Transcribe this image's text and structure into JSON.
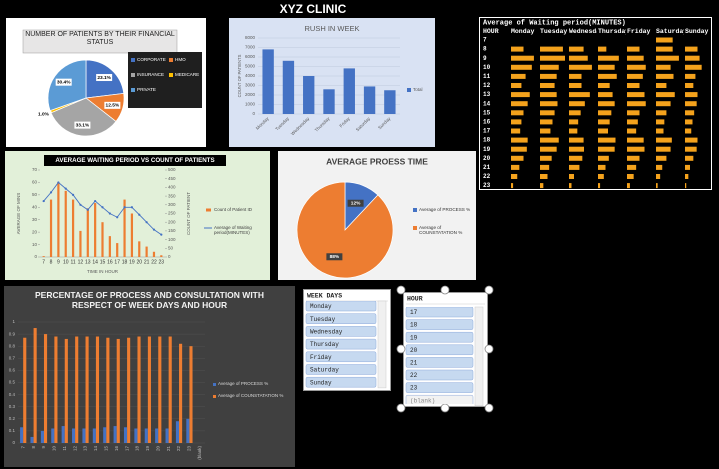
{
  "title": "XYZ CLINIC",
  "chart_data": [
    {
      "type": "pie",
      "title": "NUMBER OF PATIENTS BY THEIR FINANCIAL STATUS",
      "categories": [
        "CORPORATE",
        "HMO",
        "INSURANCE",
        "MEDICARE",
        "PRIVATE"
      ],
      "values": [
        23.1,
        12.5,
        33.1,
        1.0,
        30.4
      ],
      "value_labels": [
        "23.1%",
        "12.5%",
        "33.1%",
        "1.0%",
        "30.4%"
      ],
      "colors": [
        "#4472c4",
        "#ed7d31",
        "#a5a5a5",
        "#ffc000",
        "#5b9bd5"
      ]
    },
    {
      "type": "bar",
      "title": "RUSH IN WEEK",
      "y_label": "COUNT OF PATIENTS",
      "categories": [
        "Monday",
        "Tuesday",
        "Wednesday",
        "Thursday",
        "Friday",
        "Saturday",
        "Sunday"
      ],
      "series": [
        {
          "name": "Total",
          "color": "#4472c4",
          "values": [
            6800,
            5600,
            4000,
            2600,
            4800,
            2900,
            2500
          ]
        }
      ],
      "ylim": [
        0,
        8000
      ],
      "yticks": [
        0,
        1000,
        2000,
        3000,
        4000,
        5000,
        6000,
        7000,
        8000
      ],
      "grid": true
    },
    {
      "type": "data-bar-table",
      "title": "Average of Waiting period(MINUTES)",
      "row_header": "HOUR",
      "columns": [
        "Monday",
        "Tuesday",
        "Wednesday",
        "Thursday",
        "Friday",
        "Saturday",
        "Sunday"
      ],
      "rows": [
        "7",
        "8",
        "9",
        "10",
        "11",
        "12",
        "13",
        "14",
        "15",
        "16",
        "17",
        "18",
        "19",
        "20",
        "21",
        "22",
        "23"
      ],
      "color": "#f4a21c",
      "values": [
        [
          null,
          null,
          null,
          null,
          null,
          40,
          null
        ],
        [
          30,
          55,
          35,
          20,
          30,
          40,
          30
        ],
        [
          55,
          60,
          45,
          50,
          40,
          55,
          35
        ],
        [
          50,
          45,
          55,
          40,
          45,
          35,
          40
        ],
        [
          35,
          40,
          30,
          45,
          38,
          42,
          25
        ],
        [
          25,
          35,
          30,
          28,
          30,
          25,
          20
        ],
        [
          45,
          40,
          50,
          35,
          42,
          45,
          30
        ],
        [
          40,
          42,
          38,
          40,
          45,
          35,
          28
        ],
        [
          30,
          35,
          28,
          32,
          30,
          25,
          22
        ],
        [
          25,
          30,
          22,
          28,
          26,
          20,
          18
        ],
        [
          22,
          25,
          20,
          24,
          22,
          18,
          15
        ],
        [
          40,
          45,
          35,
          42,
          40,
          38,
          30
        ],
        [
          38,
          40,
          36,
          40,
          42,
          35,
          28
        ],
        [
          30,
          28,
          32,
          26,
          30,
          25,
          20
        ],
        [
          20,
          22,
          25,
          18,
          22,
          15,
          12
        ],
        [
          15,
          18,
          12,
          14,
          16,
          10,
          8
        ],
        [
          5,
          8,
          6,
          5,
          7,
          4,
          3
        ]
      ]
    },
    {
      "type": "combo",
      "title": "AVERAGE WAITING PERIOD VS COUNT OF PATIENTS",
      "x_label": "TIME IN HOUR",
      "y_label": "AVERAGE OF MINS",
      "y2_label": "COUNT OF PATIENT",
      "categories": [
        "7",
        "8",
        "9",
        "10",
        "11",
        "12",
        "13",
        "14",
        "15",
        "16",
        "17",
        "18",
        "19",
        "20",
        "21",
        "22",
        "23"
      ],
      "series": [
        {
          "name": "Count of Patient ID",
          "kind": "bar",
          "axis": "y2",
          "color": "#ed7d31",
          "values": [
            5,
            330,
            430,
            380,
            330,
            150,
            280,
            310,
            200,
            120,
            80,
            330,
            250,
            90,
            60,
            30,
            10
          ]
        },
        {
          "name": "Average of Waiting period(MINUTES)",
          "kind": "line",
          "color": "#4472c4",
          "values": [
            45,
            52,
            60,
            55,
            50,
            42,
            38,
            45,
            40,
            35,
            32,
            40,
            40,
            34,
            28,
            22,
            18
          ]
        }
      ],
      "ylim": [
        0,
        70
      ],
      "yticks": [
        0,
        10,
        20,
        30,
        40,
        50,
        60,
        70
      ],
      "y2lim": [
        0,
        500
      ],
      "y2ticks": [
        0,
        50,
        100,
        150,
        200,
        250,
        300,
        350,
        400,
        450,
        500
      ]
    },
    {
      "type": "pie",
      "title": "AVERAGE PROESS TIME",
      "categories": [
        "Average of PROCESS %",
        "Average of COUNSTATATION %"
      ],
      "values": [
        12,
        88
      ],
      "value_labels": [
        "12%",
        "88%"
      ],
      "colors": [
        "#4472c4",
        "#ed7d31"
      ]
    },
    {
      "type": "grouped-bar",
      "title": "PERCENTAGE OF PROCESS AND CONSULTATION WITH RESPECT OF WEEK DAYS AND HOUR",
      "categories": [
        "7",
        "8",
        "9",
        "10",
        "11",
        "12",
        "13",
        "14",
        "15",
        "16",
        "17",
        "18",
        "19",
        "20",
        "21",
        "22",
        "23",
        "(blank)"
      ],
      "series": [
        {
          "name": "Average of PROCESS %",
          "color": "#4472c4",
          "values": [
            0.13,
            0.05,
            0.1,
            0.12,
            0.14,
            0.12,
            0.12,
            0.12,
            0.13,
            0.14,
            0.13,
            0.12,
            0.12,
            0.12,
            0.12,
            0.18,
            0.2,
            null
          ]
        },
        {
          "name": "Average of COUNSTATATION %",
          "color": "#ed7d31",
          "values": [
            0.87,
            0.95,
            0.9,
            0.88,
            0.86,
            0.88,
            0.88,
            0.88,
            0.87,
            0.86,
            0.87,
            0.88,
            0.88,
            0.88,
            0.88,
            0.82,
            0.8,
            null
          ]
        }
      ],
      "ylim": [
        0,
        1
      ],
      "yticks": [
        0,
        0.1,
        0.2,
        0.3,
        0.4,
        0.5,
        0.6,
        0.7,
        0.8,
        0.9,
        1
      ],
      "grid": true
    }
  ],
  "slicers": [
    {
      "title": "WEEK DAYS",
      "items": [
        "Monday",
        "Tuesday",
        "Wednesday",
        "Thursday",
        "Friday",
        "Saturday",
        "Sunday"
      ]
    },
    {
      "title": "HOUR",
      "items": [
        "17",
        "18",
        "19",
        "20",
        "21",
        "22",
        "23",
        "(blank)"
      ]
    }
  ]
}
